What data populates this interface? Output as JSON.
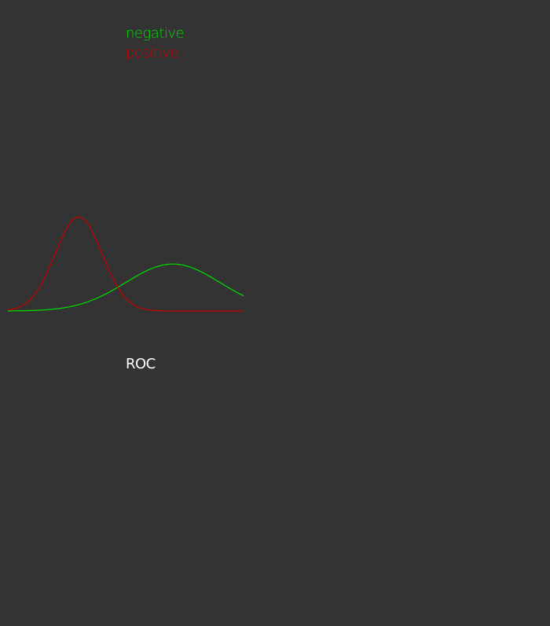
{
  "chart_data": {
    "type": "line",
    "title": "",
    "xlabel": "",
    "ylabel": "",
    "series": [
      {
        "name": "negative",
        "color": "#00dd00",
        "distribution": {
          "mean": 0.7,
          "sd": 0.2
        }
      },
      {
        "name": "positive",
        "color": "#cc0000",
        "distribution": {
          "mean": 0.3,
          "sd": 0.1
        }
      }
    ],
    "xlim": [
      0,
      1
    ],
    "ylim": [
      0,
      4.2
    ]
  },
  "roc": {
    "label": "ROC"
  }
}
